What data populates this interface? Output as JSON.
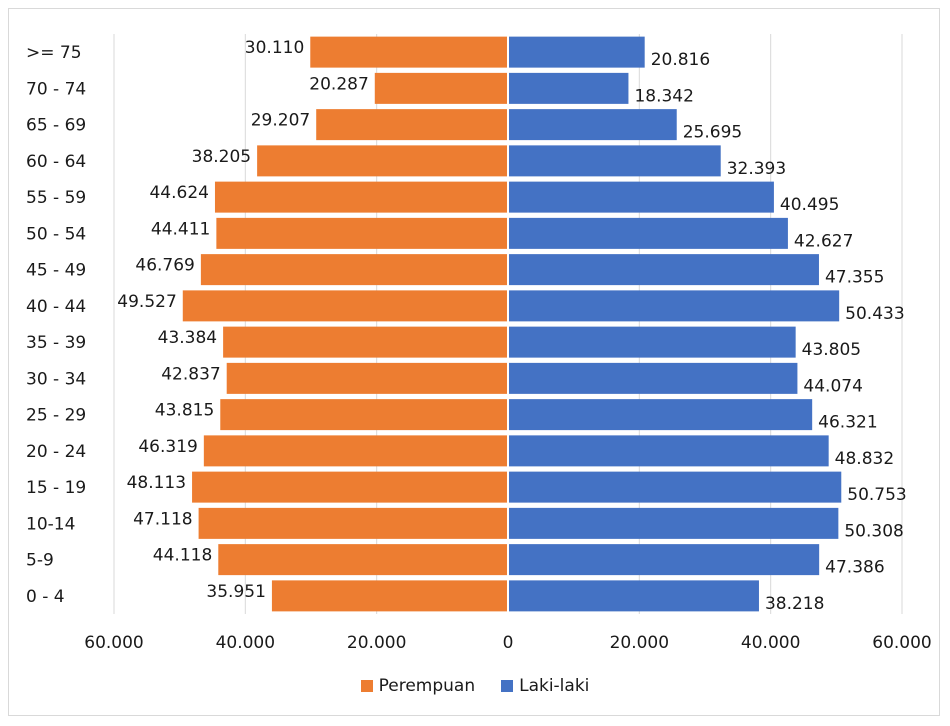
{
  "chart_data": {
    "type": "bar",
    "orientation": "horizontal-population-pyramid",
    "categories": [
      ">= 75",
      "70 - 74",
      "65 - 69",
      "60 - 64",
      "55 - 59",
      "50 - 54",
      "45 - 49",
      "40 - 44",
      "35 - 39",
      "30 - 34",
      "25 - 29",
      "20 - 24",
      "15 - 19",
      "10-14",
      "5-9",
      "0 - 4"
    ],
    "series": [
      {
        "name": "Perempuan",
        "color": "#ed7d31",
        "side": "left",
        "values": [
          30110,
          20287,
          29207,
          38205,
          44624,
          44411,
          46769,
          49527,
          43384,
          42837,
          43815,
          46319,
          48113,
          47118,
          44118,
          35951
        ],
        "labels": [
          "30.110",
          "20.287",
          "29.207",
          "38.205",
          "44.624",
          "44.411",
          "46.769",
          "49.527",
          "43.384",
          "42.837",
          "43.815",
          "46.319",
          "48.113",
          "47.118",
          "44.118",
          "35.951"
        ]
      },
      {
        "name": "Laki-laki",
        "color": "#4472c4",
        "side": "right",
        "values": [
          20816,
          18342,
          25695,
          32393,
          40495,
          42627,
          47355,
          50433,
          43805,
          44074,
          46321,
          48832,
          50753,
          50308,
          47386,
          38218
        ],
        "labels": [
          "20.816",
          "18.342",
          "25.695",
          "32.393",
          "40.495",
          "42.627",
          "47.355",
          "50.433",
          "43.805",
          "44.074",
          "46.321",
          "48.832",
          "50.753",
          "50.308",
          "47.386",
          "38.218"
        ]
      }
    ],
    "x_ticks": [
      "60.000",
      "40.000",
      "20.000",
      "0",
      "20.000",
      "40.000",
      "60.000"
    ],
    "x_tick_values": [
      -60000,
      -40000,
      -20000,
      0,
      20000,
      40000,
      60000
    ],
    "xlim": [
      -60000,
      60000
    ],
    "grid": true,
    "legend_position": "bottom"
  }
}
